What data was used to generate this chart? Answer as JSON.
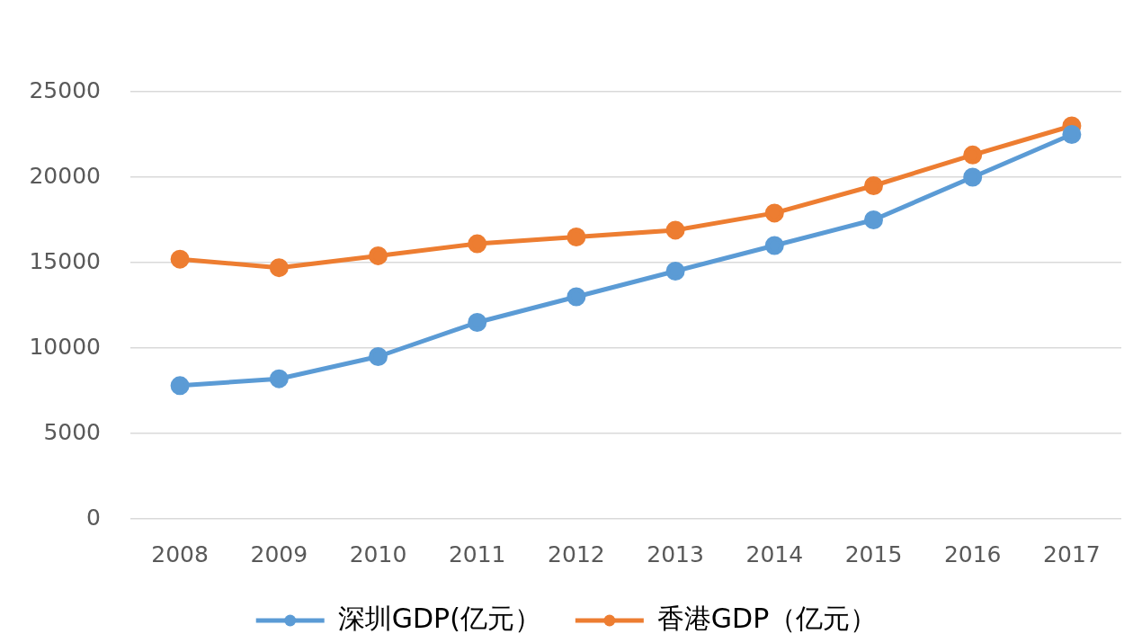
{
  "chart_data": {
    "type": "line",
    "categories": [
      "2008",
      "2009",
      "2010",
      "2011",
      "2012",
      "2013",
      "2014",
      "2015",
      "2016",
      "2017"
    ],
    "series": [
      {
        "name": "深圳GDP(亿元）",
        "color": "#5b9bd5",
        "values": [
          7800,
          8200,
          9500,
          11500,
          13000,
          14500,
          16000,
          17500,
          20000,
          22500
        ]
      },
      {
        "name": "香港GDP（亿元）",
        "color": "#ed7d31",
        "values": [
          15200,
          14700,
          15400,
          16100,
          16500,
          16900,
          17900,
          19500,
          21300,
          23000
        ]
      }
    ],
    "ylim": [
      0,
      25000
    ],
    "yticks": [
      0,
      5000,
      10000,
      15000,
      20000,
      25000
    ],
    "grid": "y",
    "legend": "bottom",
    "marker": "circle",
    "line_style": "solid"
  }
}
